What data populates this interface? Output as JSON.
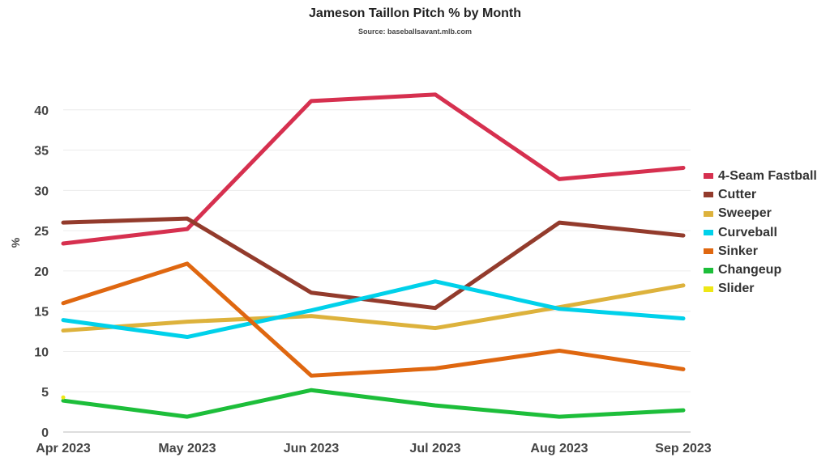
{
  "chart_data": {
    "type": "line",
    "title": "Jameson Taillon Pitch % by Month",
    "subtitle": "Source: baseballsavant.mlb.com",
    "xlabel": "",
    "ylabel": "%",
    "ylim": [
      0,
      45
    ],
    "yticks": [
      0,
      5,
      10,
      15,
      20,
      25,
      30,
      35,
      40
    ],
    "grid": true,
    "legend_position": "right",
    "categories": [
      "Apr 2023",
      "May 2023",
      "Jun 2023",
      "Jul 2023",
      "Aug 2023",
      "Sep 2023"
    ],
    "series": [
      {
        "name": "4-Seam Fastball",
        "color": "#d6304f",
        "values": [
          23.4,
          25.2,
          41.1,
          41.9,
          31.4,
          32.8
        ]
      },
      {
        "name": "Cutter",
        "color": "#933b2c",
        "values": [
          26.0,
          26.5,
          17.3,
          15.4,
          26.0,
          24.4
        ]
      },
      {
        "name": "Sweeper",
        "color": "#ddb23c",
        "values": [
          12.6,
          13.7,
          14.4,
          12.9,
          15.5,
          18.2
        ]
      },
      {
        "name": "Curveball",
        "color": "#00d1ea",
        "values": [
          13.9,
          11.8,
          15.1,
          18.7,
          15.3,
          14.1
        ]
      },
      {
        "name": "Sinker",
        "color": "#df6710",
        "values": [
          16.0,
          20.9,
          7.0,
          7.9,
          10.1,
          7.8
        ]
      },
      {
        "name": "Changeup",
        "color": "#1dbe3a",
        "values": [
          3.9,
          1.9,
          5.2,
          3.3,
          1.9,
          2.7
        ]
      },
      {
        "name": "Slider",
        "color": "#eee716",
        "values": [
          4.3,
          null,
          null,
          null,
          null,
          null
        ]
      }
    ]
  }
}
